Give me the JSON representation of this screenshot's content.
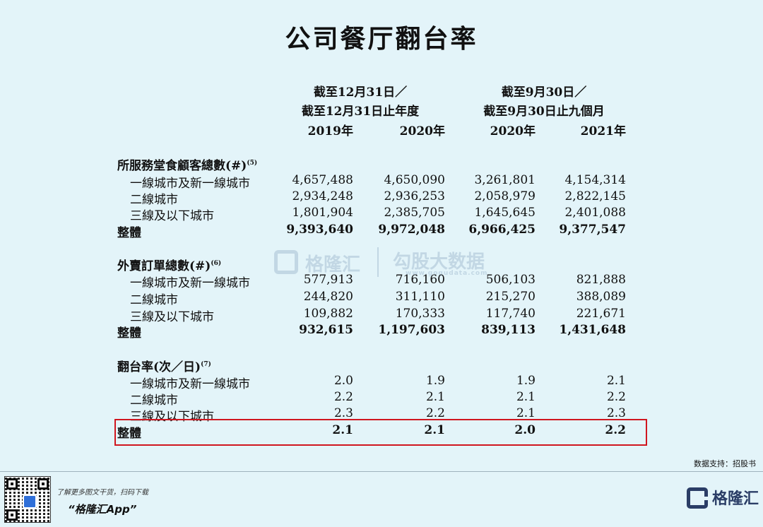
{
  "title": "公司餐厅翻台率",
  "header": {
    "group1_line1": "截至12月31日／",
    "group1_line2": "截至12月31日止年度",
    "group2_line1": "截至9月30日／",
    "group2_line2": "截至9月30日止九個月",
    "years": [
      "2019年",
      "2020年",
      "2020年",
      "2021年"
    ]
  },
  "sections": [
    {
      "title": "所服務堂食顧客總數(#)",
      "note": "(5)",
      "rows": [
        {
          "label": "一線城市及新一線城市",
          "values": [
            "4,657,488",
            "4,650,090",
            "3,261,801",
            "4,154,314"
          ]
        },
        {
          "label": "二線城市",
          "values": [
            "2,934,248",
            "2,936,253",
            "2,058,979",
            "2,822,145"
          ]
        },
        {
          "label": "三線及以下城市",
          "values": [
            "1,801,904",
            "2,385,705",
            "1,645,645",
            "2,401,088"
          ]
        },
        {
          "label": "整體",
          "values": [
            "9,393,640",
            "9,972,048",
            "6,966,425",
            "9,377,547"
          ]
        }
      ]
    },
    {
      "title": "外賣訂單總數(#)",
      "note": "(6)",
      "rows": [
        {
          "label": "一線城市及新一線城市",
          "values": [
            "577,913",
            "716,160",
            "506,103",
            "821,888"
          ]
        },
        {
          "label": "二線城市",
          "values": [
            "244,820",
            "311,110",
            "215,270",
            "388,089"
          ]
        },
        {
          "label": "三線及以下城市",
          "values": [
            "109,882",
            "170,333",
            "117,740",
            "221,671"
          ]
        },
        {
          "label": "整體",
          "values": [
            "932,615",
            "1,197,603",
            "839,113",
            "1,431,648"
          ]
        }
      ]
    },
    {
      "title": "翻台率(次／日)",
      "note": "(7)",
      "rows": [
        {
          "label": "一線城市及新一線城市",
          "values": [
            "2.0",
            "1.9",
            "1.9",
            "2.1"
          ]
        },
        {
          "label": "二線城市",
          "values": [
            "2.2",
            "2.1",
            "2.1",
            "2.2"
          ]
        },
        {
          "label": "三線及以下城市",
          "values": [
            "2.3",
            "2.2",
            "2.1",
            "2.3"
          ]
        },
        {
          "label": "整體",
          "values": [
            "2.1",
            "2.1",
            "2.0",
            "2.2"
          ]
        }
      ]
    }
  ],
  "highlight_color": "#d0161f",
  "watermark": {
    "brand": "格隆汇",
    "sub": "勾股大数据",
    "url": "www.gogudata.com"
  },
  "source": "数据支持：招股书",
  "footer": {
    "promo": "了解更多图文干货，扫码下载",
    "app_name": "“格隆汇App”",
    "logo_text": "格隆汇"
  }
}
